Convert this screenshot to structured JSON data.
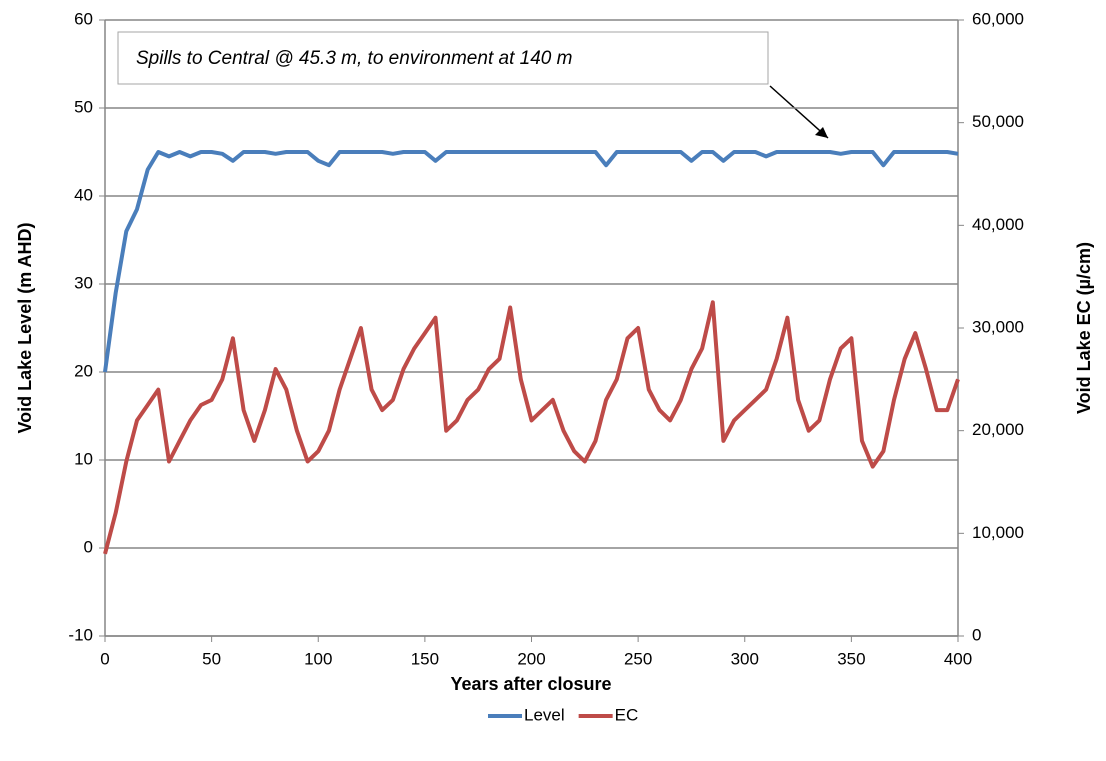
{
  "chart_data": {
    "type": "line",
    "xlabel": "Years after closure",
    "ylabel": "Void Lake Level (m AHD)",
    "y2label": "Void Lake EC (µ/cm)",
    "annotation": "Spills to Central @ 45.3 m, to environment at 140 m",
    "x": [
      0,
      5,
      10,
      15,
      20,
      25,
      30,
      35,
      40,
      45,
      50,
      55,
      60,
      65,
      70,
      75,
      80,
      85,
      90,
      95,
      100,
      105,
      110,
      115,
      120,
      125,
      130,
      135,
      140,
      145,
      150,
      155,
      160,
      165,
      170,
      175,
      180,
      185,
      190,
      195,
      200,
      205,
      210,
      215,
      220,
      225,
      230,
      235,
      240,
      245,
      250,
      255,
      260,
      265,
      270,
      275,
      280,
      285,
      290,
      295,
      300,
      305,
      310,
      315,
      320,
      325,
      330,
      335,
      340,
      345,
      350,
      355,
      360,
      365,
      370,
      375,
      380,
      385,
      390,
      395,
      400
    ],
    "xlim": [
      0,
      400
    ],
    "xticks": [
      0,
      50,
      100,
      150,
      200,
      250,
      300,
      350,
      400
    ],
    "ylim": [
      -10,
      60
    ],
    "yticks": [
      -10,
      0,
      10,
      20,
      30,
      40,
      50,
      60
    ],
    "y2lim": [
      0,
      60000
    ],
    "y2ticks": [
      {
        "value": 0,
        "label": "0"
      },
      {
        "value": 10000,
        "label": "10,000"
      },
      {
        "value": 20000,
        "label": "20,000"
      },
      {
        "value": 30000,
        "label": "30,000"
      },
      {
        "value": 40000,
        "label": "40,000"
      },
      {
        "value": 50000,
        "label": "50,000"
      },
      {
        "value": 60000,
        "label": "60,000"
      }
    ],
    "grid": true,
    "legend": "bottom",
    "series": [
      {
        "name": "Level",
        "color": "#4a7ebb",
        "values": [
          20,
          29,
          36,
          38.5,
          43,
          45,
          44.5,
          45,
          44.5,
          45,
          45,
          44.8,
          44,
          45,
          45,
          45,
          44.8,
          45,
          45,
          45,
          44,
          43.5,
          45,
          45,
          45,
          45,
          45,
          44.8,
          45,
          45,
          45,
          44,
          45,
          45,
          45,
          45,
          45,
          45,
          45,
          45,
          45,
          45,
          45,
          45,
          45,
          45,
          45,
          43.5,
          45,
          45,
          45,
          45,
          45,
          45,
          45,
          44,
          45,
          45,
          44,
          45,
          45,
          45,
          44.5,
          45,
          45,
          45,
          45,
          45,
          45,
          44.8,
          45,
          45,
          45,
          43.5,
          45,
          45,
          45,
          45,
          45,
          45,
          44.8
        ]
      },
      {
        "name": "EC",
        "color": "#be4b48",
        "axis": "y2",
        "values": [
          8000,
          12000,
          17000,
          21000,
          22500,
          24000,
          17000,
          19000,
          21000,
          22500,
          23000,
          25000,
          29000,
          22000,
          19000,
          22000,
          26000,
          24000,
          20000,
          17000,
          18000,
          20000,
          24000,
          27000,
          30000,
          24000,
          22000,
          23000,
          26000,
          28000,
          29500,
          31000,
          20000,
          21000,
          23000,
          24000,
          26000,
          27000,
          32000,
          25000,
          21000,
          22000,
          23000,
          20000,
          18000,
          17000,
          19000,
          23000,
          25000,
          29000,
          30000,
          24000,
          22000,
          21000,
          23000,
          26000,
          28000,
          32500,
          19000,
          21000,
          22000,
          23000,
          24000,
          27000,
          31000,
          23000,
          20000,
          21000,
          25000,
          28000,
          29000,
          19000,
          16500,
          18000,
          23000,
          27000,
          29500,
          26000,
          22000,
          22000,
          25000
        ]
      }
    ]
  }
}
